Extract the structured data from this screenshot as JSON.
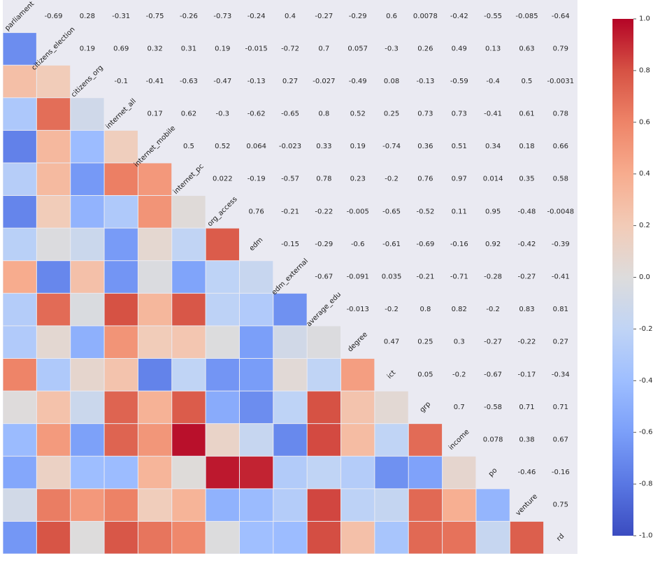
{
  "chart_data": {
    "type": "heatmap",
    "title": "",
    "xlabel": "",
    "ylabel": "",
    "colormap": "coolwarm",
    "vmin": -1.0,
    "vmax": 1.0,
    "colorbar_ticks": [
      "1.0",
      "0.8",
      "0.6",
      "0.4",
      "0.2",
      "0.0",
      "-0.2",
      "-0.4",
      "-0.6",
      "-0.8",
      "-1.0"
    ],
    "variables": [
      "parliament",
      "citizens_election",
      "citizens_org",
      "internet_all",
      "internet_mobile",
      "internet_pc",
      "org_access",
      "edm",
      "edm_external",
      "average_edu",
      "degree",
      "ict",
      "grp",
      "income",
      "po",
      "venture",
      "rd"
    ],
    "upper_labels": [
      [
        null,
        "-0.69",
        "0.28",
        "-0.31",
        "-0.75",
        "-0.26",
        "-0.73",
        "-0.24",
        "0.4",
        "-0.27",
        "-0.29",
        "0.6",
        "0.0078",
        "-0.42",
        "-0.55",
        "-0.085",
        "-0.64"
      ],
      [
        null,
        null,
        "0.19",
        "0.69",
        "0.32",
        "0.31",
        "0.19",
        "-0.015",
        "-0.72",
        "0.7",
        "0.057",
        "-0.3",
        "0.26",
        "0.49",
        "0.13",
        "0.63",
        "0.79"
      ],
      [
        null,
        null,
        null,
        "-0.1",
        "-0.41",
        "-0.63",
        "-0.47",
        "-0.13",
        "0.27",
        "-0.027",
        "-0.49",
        "0.08",
        "-0.13",
        "-0.59",
        "-0.4",
        "0.5",
        "-0.0031"
      ],
      [
        null,
        null,
        null,
        null,
        "0.17",
        "0.62",
        "-0.3",
        "-0.62",
        "-0.65",
        "0.8",
        "0.52",
        "0.25",
        "0.73",
        "0.73",
        "-0.41",
        "0.61",
        "0.78"
      ],
      [
        null,
        null,
        null,
        null,
        null,
        "0.5",
        "0.52",
        "0.064",
        "-0.023",
        "0.33",
        "0.19",
        "-0.74",
        "0.36",
        "0.51",
        "0.34",
        "0.18",
        "0.66"
      ],
      [
        null,
        null,
        null,
        null,
        null,
        null,
        "0.022",
        "-0.19",
        "-0.57",
        "0.78",
        "0.23",
        "-0.2",
        "0.76",
        "0.97",
        "0.014",
        "0.35",
        "0.58"
      ],
      [
        null,
        null,
        null,
        null,
        null,
        null,
        null,
        "0.76",
        "-0.21",
        "-0.22",
        "-0.005",
        "-0.65",
        "-0.52",
        "0.11",
        "0.95",
        "-0.48",
        "-0.0048"
      ],
      [
        null,
        null,
        null,
        null,
        null,
        null,
        null,
        null,
        "-0.15",
        "-0.29",
        "-0.6",
        "-0.61",
        "-0.69",
        "-0.16",
        "0.92",
        "-0.42",
        "-0.39"
      ],
      [
        null,
        null,
        null,
        null,
        null,
        null,
        null,
        null,
        null,
        "-0.67",
        "-0.091",
        "0.035",
        "-0.21",
        "-0.71",
        "-0.28",
        "-0.27",
        "-0.41"
      ],
      [
        null,
        null,
        null,
        null,
        null,
        null,
        null,
        null,
        null,
        null,
        "-0.013",
        "-0.2",
        "0.8",
        "0.82",
        "-0.2",
        "0.83",
        "0.81"
      ],
      [
        null,
        null,
        null,
        null,
        null,
        null,
        null,
        null,
        null,
        null,
        null,
        "0.47",
        "0.25",
        "0.3",
        "-0.27",
        "-0.22",
        "0.27"
      ],
      [
        null,
        null,
        null,
        null,
        null,
        null,
        null,
        null,
        null,
        null,
        null,
        null,
        "0.05",
        "-0.2",
        "-0.67",
        "-0.17",
        "-0.34"
      ],
      [
        null,
        null,
        null,
        null,
        null,
        null,
        null,
        null,
        null,
        null,
        null,
        null,
        null,
        "0.7",
        "-0.58",
        "0.71",
        "0.71"
      ],
      [
        null,
        null,
        null,
        null,
        null,
        null,
        null,
        null,
        null,
        null,
        null,
        null,
        null,
        null,
        "0.078",
        "0.38",
        "0.67"
      ],
      [
        null,
        null,
        null,
        null,
        null,
        null,
        null,
        null,
        null,
        null,
        null,
        null,
        null,
        null,
        null,
        "-0.46",
        "-0.16"
      ],
      [
        null,
        null,
        null,
        null,
        null,
        null,
        null,
        null,
        null,
        null,
        null,
        null,
        null,
        null,
        null,
        null,
        "0.75"
      ],
      [
        null,
        null,
        null,
        null,
        null,
        null,
        null,
        null,
        null,
        null,
        null,
        null,
        null,
        null,
        null,
        null,
        null
      ]
    ],
    "lower_values": [
      [],
      [
        -0.69
      ],
      [
        0.28,
        0.19
      ],
      [
        -0.31,
        0.69,
        -0.1
      ],
      [
        -0.75,
        0.32,
        -0.41,
        0.17
      ],
      [
        -0.26,
        0.31,
        -0.63,
        0.62,
        0.5
      ],
      [
        -0.73,
        0.19,
        -0.47,
        -0.3,
        0.52,
        0.022
      ],
      [
        -0.24,
        -0.015,
        -0.13,
        -0.62,
        0.064,
        -0.19,
        0.76
      ],
      [
        0.4,
        -0.72,
        0.27,
        -0.65,
        -0.023,
        -0.57,
        -0.21,
        -0.15
      ],
      [
        -0.27,
        0.7,
        -0.027,
        0.8,
        0.33,
        0.78,
        -0.22,
        -0.29,
        -0.67
      ],
      [
        -0.29,
        0.057,
        -0.49,
        0.52,
        0.19,
        0.23,
        -0.005,
        -0.6,
        -0.091,
        -0.013
      ],
      [
        0.6,
        -0.3,
        0.08,
        0.25,
        -0.74,
        -0.2,
        -0.65,
        -0.61,
        0.035,
        -0.2,
        0.47
      ],
      [
        0.0078,
        0.26,
        -0.13,
        0.73,
        0.36,
        0.76,
        -0.52,
        -0.69,
        -0.21,
        0.8,
        0.25,
        0.05
      ],
      [
        -0.42,
        0.49,
        -0.59,
        0.73,
        0.51,
        0.97,
        0.11,
        -0.16,
        -0.71,
        0.82,
        0.3,
        -0.2,
        0.7
      ],
      [
        -0.55,
        0.13,
        -0.4,
        -0.41,
        0.34,
        0.014,
        0.95,
        0.92,
        -0.28,
        -0.2,
        -0.27,
        -0.67,
        -0.58,
        0.078
      ],
      [
        -0.085,
        0.63,
        0.5,
        0.61,
        0.18,
        0.35,
        -0.48,
        -0.42,
        -0.27,
        0.83,
        -0.22,
        -0.17,
        0.71,
        0.38,
        -0.46
      ],
      [
        -0.64,
        0.79,
        -0.0031,
        0.78,
        0.66,
        0.58,
        -0.0048,
        -0.39,
        -0.41,
        0.81,
        0.27,
        -0.34,
        0.71,
        0.67,
        -0.16,
        0.75
      ]
    ]
  }
}
